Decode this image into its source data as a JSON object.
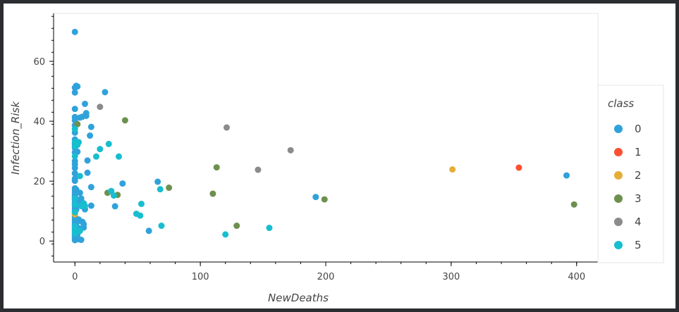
{
  "chart_data": {
    "type": "scatter",
    "title": "",
    "xlabel": "NewDeaths",
    "ylabel": "Infection_Risk",
    "xlim": [
      -17,
      417
    ],
    "ylim": [
      -7,
      76
    ],
    "xticks": [
      0,
      100,
      200,
      300,
      400
    ],
    "yticks": [
      0,
      20,
      40,
      60
    ],
    "legend_title": "class",
    "legend_position": "right",
    "series": [
      {
        "name": "0",
        "color": "#30a2da",
        "points": [
          [
            0,
            69.8
          ],
          [
            0,
            51.2
          ],
          [
            1,
            51.8
          ],
          [
            2,
            51.6
          ],
          [
            0,
            49.6
          ],
          [
            0,
            44.1
          ],
          [
            0,
            41.4
          ],
          [
            0,
            40.3
          ],
          [
            0,
            38.6
          ],
          [
            0,
            36.2
          ],
          [
            0,
            33.9
          ],
          [
            0,
            32.4
          ],
          [
            0,
            31.1
          ],
          [
            0,
            29.6
          ],
          [
            0,
            26.7
          ],
          [
            0,
            25.6
          ],
          [
            0,
            24.4
          ],
          [
            0,
            22.6
          ],
          [
            0,
            20.8
          ],
          [
            0,
            20.1
          ],
          [
            0,
            17.6
          ],
          [
            0,
            16.8
          ],
          [
            0,
            16.0
          ],
          [
            0,
            15.3
          ],
          [
            0,
            14.6
          ],
          [
            0,
            13.8
          ],
          [
            0,
            12.9
          ],
          [
            0,
            11.9
          ],
          [
            0,
            11.0
          ],
          [
            0,
            10.1
          ],
          [
            0,
            9.2
          ],
          [
            0,
            8.3
          ],
          [
            0,
            7.6
          ],
          [
            0,
            6.9
          ],
          [
            0,
            6.2
          ],
          [
            0,
            5.5
          ],
          [
            0,
            4.8
          ],
          [
            0,
            4.1
          ],
          [
            0,
            3.4
          ],
          [
            0,
            2.7
          ],
          [
            0,
            2.0
          ],
          [
            0,
            1.4
          ],
          [
            0,
            0.8
          ],
          [
            0,
            0.3
          ],
          [
            1,
            17.2
          ],
          [
            1,
            14.0
          ],
          [
            1,
            10.5
          ],
          [
            1,
            5.8
          ],
          [
            1,
            3.1
          ],
          [
            1,
            1.0
          ],
          [
            2,
            29.8
          ],
          [
            2,
            12.3
          ],
          [
            2,
            6.5
          ],
          [
            2,
            2.2
          ],
          [
            3,
            7.2
          ],
          [
            3,
            4.3
          ],
          [
            3,
            0.6
          ],
          [
            4,
            41.2
          ],
          [
            4,
            16.1
          ],
          [
            4,
            13.1
          ],
          [
            5,
            14.2
          ],
          [
            5,
            0.4
          ],
          [
            6,
            41.5
          ],
          [
            6,
            6.4
          ],
          [
            7,
            5.6
          ],
          [
            7,
            4.5
          ],
          [
            8,
            45.8
          ],
          [
            8,
            10.6
          ],
          [
            9,
            42.7
          ],
          [
            9,
            41.8
          ],
          [
            10,
            22.8
          ],
          [
            10,
            26.9
          ],
          [
            12,
            35.2
          ],
          [
            13,
            38.1
          ],
          [
            13,
            18.0
          ],
          [
            13,
            11.8
          ],
          [
            24,
            49.7
          ],
          [
            32,
            11.6
          ],
          [
            38,
            19.2
          ],
          [
            59,
            3.4
          ],
          [
            66,
            19.8
          ],
          [
            192,
            14.7
          ],
          [
            392,
            21.9
          ]
        ]
      },
      {
        "name": "1",
        "color": "#fc4f30",
        "points": [
          [
            354,
            24.5
          ]
        ]
      },
      {
        "name": "2",
        "color": "#e5ae38",
        "points": [
          [
            0,
            8.9
          ],
          [
            301,
            23.9
          ]
        ]
      },
      {
        "name": "3",
        "color": "#6d904f",
        "points": [
          [
            2,
            39.0
          ],
          [
            26,
            16.1
          ],
          [
            34,
            15.4
          ],
          [
            40,
            40.3
          ],
          [
            75,
            17.8
          ],
          [
            110,
            15.8
          ],
          [
            113,
            24.6
          ],
          [
            129,
            5.1
          ],
          [
            199,
            13.9
          ],
          [
            398,
            12.2
          ]
        ]
      },
      {
        "name": "4",
        "color": "#8b8b8b",
        "points": [
          [
            20,
            44.8
          ],
          [
            121,
            37.9
          ],
          [
            146,
            23.8
          ],
          [
            172,
            30.3
          ]
        ]
      },
      {
        "name": "5",
        "color": "#17becf",
        "points": [
          [
            0,
            37.4
          ],
          [
            0,
            33.0
          ],
          [
            0,
            31.7
          ],
          [
            0,
            28.3
          ],
          [
            0,
            14.2
          ],
          [
            0,
            12.2
          ],
          [
            0,
            9.6
          ],
          [
            0,
            4.9
          ],
          [
            0,
            3.7
          ],
          [
            0,
            2.5
          ],
          [
            2,
            32.1
          ],
          [
            3,
            33.0
          ],
          [
            4,
            21.7
          ],
          [
            4,
            3.4
          ],
          [
            5,
            11.7
          ],
          [
            7,
            12.6
          ],
          [
            8,
            11.7
          ],
          [
            17,
            28.2
          ],
          [
            20,
            30.7
          ],
          [
            27,
            32.4
          ],
          [
            29,
            16.7
          ],
          [
            31,
            15.2
          ],
          [
            35,
            28.2
          ],
          [
            49,
            9.1
          ],
          [
            52,
            8.5
          ],
          [
            53,
            12.4
          ],
          [
            68,
            17.3
          ],
          [
            69,
            5.1
          ],
          [
            120,
            2.2
          ],
          [
            155,
            4.4
          ]
        ]
      }
    ]
  }
}
